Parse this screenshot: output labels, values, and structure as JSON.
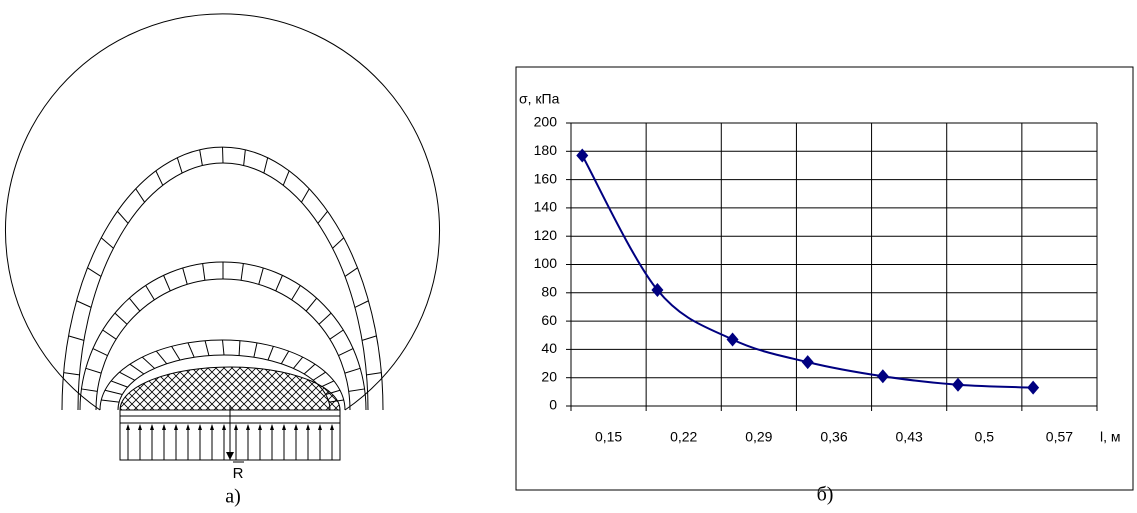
{
  "figure_a": {
    "label": "а)",
    "force_label": "R"
  },
  "figure_b": {
    "label": "б)"
  },
  "chart_data": {
    "type": "line",
    "y_label": "σ, кПа",
    "x_label": "l, м",
    "categories": [
      "0,15",
      "0,22",
      "0,29",
      "0,36",
      "0,43",
      "0,5",
      "0,57"
    ],
    "values": [
      177,
      82,
      47,
      31,
      21,
      15,
      13
    ],
    "color": "#000080",
    "marker": "diamond",
    "ylim": [
      0,
      200
    ],
    "yticks": [
      0,
      20,
      40,
      60,
      80,
      100,
      120,
      140,
      160,
      180,
      200
    ],
    "grid": true
  }
}
